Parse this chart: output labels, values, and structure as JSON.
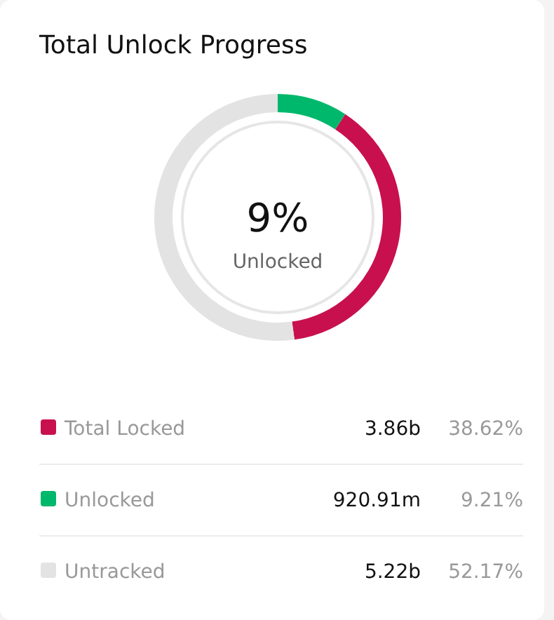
{
  "chart_data": {
    "type": "donut",
    "title": "Total Unlock Progress",
    "categories": [
      "Total Locked",
      "Unlocked",
      "Untracked"
    ],
    "values": [
      38.62,
      9.21,
      52.17
    ],
    "colors": [
      "#c8104e",
      "#00b86b",
      "#e3e3e3"
    ],
    "value_labels": [
      "38.62%",
      "9.21%",
      "52.17%"
    ],
    "annotations": [
      "9%",
      "Unlocked",
      "3.86b",
      "920.91m",
      "5.22b"
    ],
    "legend": "bottom"
  }
}
